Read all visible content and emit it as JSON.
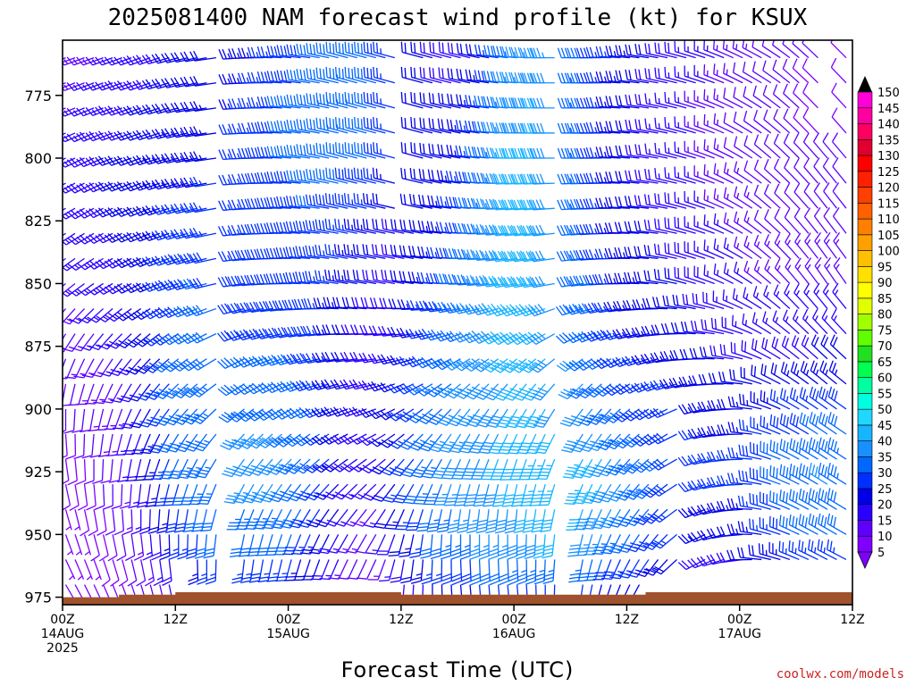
{
  "chart_data": {
    "type": "wind-barb-profile",
    "title": "2025081400 NAM forecast wind profile (kt) for KSUX",
    "xlabel": "Forecast Time (UTC)",
    "ylabel": "",
    "x_unit": "forecast hour",
    "x_range": [
      0,
      84
    ],
    "x_ticks": [
      {
        "hour": 0,
        "line1": "00Z",
        "line2": "14AUG",
        "line3": "2025"
      },
      {
        "hour": 12,
        "line1": "12Z",
        "line2": "",
        "line3": ""
      },
      {
        "hour": 24,
        "line1": "00Z",
        "line2": "15AUG",
        "line3": ""
      },
      {
        "hour": 36,
        "line1": "12Z",
        "line2": "",
        "line3": ""
      },
      {
        "hour": 48,
        "line1": "00Z",
        "line2": "16AUG",
        "line3": ""
      },
      {
        "hour": 60,
        "line1": "12Z",
        "line2": "",
        "line3": ""
      },
      {
        "hour": 72,
        "line1": "00Z",
        "line2": "17AUG",
        "line3": ""
      },
      {
        "hour": 84,
        "line1": "12Z",
        "line2": "",
        "line3": ""
      }
    ],
    "y_unit": "hPa",
    "y_range": [
      978,
      753
    ],
    "y_ticks": [
      775,
      800,
      825,
      850,
      875,
      900,
      925,
      950,
      975
    ],
    "colorbar": {
      "levels": [
        5,
        10,
        15,
        20,
        25,
        30,
        35,
        40,
        45,
        50,
        55,
        60,
        65,
        70,
        75,
        80,
        85,
        90,
        95,
        100,
        105,
        110,
        115,
        120,
        125,
        130,
        135,
        140,
        145,
        150
      ],
      "colors": [
        "#7f00ff",
        "#5f00ff",
        "#2a00ff",
        "#0000e8",
        "#0030ff",
        "#0068ff",
        "#1890ff",
        "#18b4ff",
        "#20d8ff",
        "#00ffe0",
        "#00ffa0",
        "#00ff50",
        "#20e020",
        "#60ff00",
        "#a0ff00",
        "#e0ff00",
        "#ffff00",
        "#ffe000",
        "#ffc000",
        "#ffa000",
        "#ff8000",
        "#ff6000",
        "#ff4000",
        "#ff2000",
        "#ff0000",
        "#e00030",
        "#ff0060",
        "#ff00a0",
        "#ff00d8",
        "#e000ff"
      ]
    },
    "surface_color": "#a0522d",
    "surface_pressure_hPa": [
      975,
      975,
      975,
      975,
      975,
      975,
      974,
      974,
      974,
      974,
      974,
      974,
      973,
      973,
      973,
      973,
      973,
      973,
      973,
      973,
      973,
      973,
      973,
      973,
      973,
      973,
      973,
      973,
      973,
      973,
      973,
      973,
      973,
      973,
      973,
      973,
      974,
      974,
      974,
      974,
      974,
      974,
      974,
      974,
      974,
      974,
      974,
      974,
      974,
      974,
      974,
      974,
      974,
      974,
      974,
      974,
      974,
      974,
      974,
      974,
      974,
      974,
      973,
      973,
      973,
      973,
      973,
      973,
      973,
      973,
      973,
      973,
      973,
      973,
      973,
      973,
      973,
      973,
      973,
      973,
      973,
      973,
      973,
      973,
      973
    ],
    "hours": [
      0,
      1,
      2,
      3,
      4,
      5,
      6,
      7,
      8,
      9,
      10,
      11,
      12,
      13,
      14,
      15,
      16,
      17,
      18,
      19,
      20,
      21,
      22,
      23,
      24,
      25,
      26,
      27,
      28,
      29,
      30,
      31,
      32,
      33,
      34,
      35,
      36,
      37,
      38,
      39,
      40,
      41,
      42,
      43,
      44,
      45,
      46,
      47,
      48,
      49,
      50,
      51,
      52,
      53,
      54,
      55,
      56,
      57,
      58,
      59,
      60,
      61,
      62,
      63,
      64,
      65,
      66,
      67,
      68,
      69,
      70,
      71,
      72,
      73,
      74,
      75,
      76,
      77,
      78,
      79,
      80,
      81,
      82,
      83,
      84
    ],
    "levels_hPa": [
      760,
      770,
      780,
      790,
      800,
      810,
      820,
      830,
      840,
      850,
      860,
      870,
      880,
      890,
      900,
      910,
      920,
      930,
      940,
      950,
      960,
      970
    ],
    "wind_key_times": [
      0,
      3,
      6,
      9,
      12,
      15,
      18,
      21,
      24,
      27,
      30,
      33,
      36,
      39,
      42,
      45,
      48,
      51,
      54,
      57,
      60,
      63,
      66,
      69,
      72,
      75,
      78,
      81,
      84
    ],
    "speed_kt_by_level": {
      "760": [
        12,
        14,
        16,
        18,
        20,
        20,
        22,
        24,
        28,
        30,
        32,
        30,
        26,
        20,
        18,
        22,
        34,
        38,
        34,
        28,
        24,
        20,
        18,
        16,
        14,
        12,
        10,
        10,
        8
      ],
      "780": [
        14,
        16,
        18,
        20,
        22,
        22,
        24,
        26,
        30,
        32,
        34,
        30,
        26,
        20,
        20,
        26,
        38,
        40,
        36,
        28,
        22,
        18,
        16,
        14,
        12,
        10,
        10,
        8,
        8
      ],
      "800": [
        16,
        18,
        20,
        22,
        24,
        24,
        26,
        28,
        30,
        32,
        32,
        30,
        24,
        20,
        22,
        30,
        40,
        40,
        36,
        28,
        22,
        18,
        16,
        14,
        12,
        12,
        10,
        10,
        10
      ],
      "825": [
        16,
        18,
        20,
        22,
        26,
        26,
        26,
        28,
        28,
        30,
        28,
        24,
        20,
        20,
        26,
        34,
        42,
        40,
        36,
        28,
        22,
        20,
        18,
        16,
        14,
        12,
        12,
        12,
        12
      ],
      "850": [
        14,
        16,
        18,
        22,
        28,
        30,
        28,
        28,
        28,
        28,
        24,
        20,
        18,
        24,
        30,
        36,
        42,
        40,
        36,
        30,
        24,
        22,
        20,
        18,
        16,
        14,
        14,
        14,
        14
      ],
      "875": [
        12,
        14,
        16,
        22,
        30,
        32,
        30,
        30,
        30,
        28,
        22,
        18,
        20,
        28,
        34,
        38,
        42,
        40,
        36,
        32,
        26,
        24,
        22,
        20,
        18,
        18,
        18,
        18,
        18
      ],
      "900": [
        10,
        12,
        14,
        22,
        32,
        34,
        34,
        34,
        34,
        30,
        22,
        18,
        24,
        32,
        36,
        38,
        40,
        40,
        38,
        34,
        30,
        28,
        26,
        24,
        22,
        24,
        26,
        28,
        30
      ],
      "925": [
        8,
        10,
        12,
        20,
        30,
        34,
        36,
        38,
        36,
        30,
        20,
        16,
        26,
        34,
        38,
        40,
        42,
        44,
        46,
        42,
        36,
        32,
        28,
        26,
        26,
        30,
        34,
        36,
        34
      ],
      "950": [
        6,
        8,
        10,
        16,
        26,
        30,
        30,
        32,
        30,
        24,
        16,
        12,
        22,
        30,
        34,
        36,
        38,
        40,
        40,
        36,
        32,
        28,
        24,
        22,
        22,
        26,
        30,
        32,
        30
      ],
      "970": [
        4,
        6,
        8,
        12,
        18,
        22,
        22,
        24,
        22,
        16,
        10,
        8,
        16,
        20,
        24,
        26,
        28,
        28,
        28,
        24,
        22,
        20,
        18,
        16,
        16,
        18,
        20,
        22,
        20
      ]
    },
    "direction_deg_by_level": {
      "760": [
        250,
        250,
        250,
        250,
        255,
        260,
        265,
        270,
        275,
        280,
        285,
        285,
        285,
        285,
        285,
        280,
        275,
        270,
        270,
        270,
        275,
        280,
        285,
        290,
        295,
        300,
        310,
        315,
        315
      ],
      "800": [
        245,
        245,
        250,
        250,
        255,
        260,
        265,
        270,
        275,
        280,
        285,
        285,
        285,
        285,
        280,
        275,
        270,
        270,
        270,
        270,
        275,
        280,
        285,
        290,
        300,
        310,
        315,
        320,
        320
      ],
      "850": [
        230,
        235,
        240,
        245,
        250,
        255,
        260,
        265,
        270,
        275,
        280,
        280,
        280,
        275,
        270,
        265,
        260,
        260,
        260,
        265,
        270,
        275,
        285,
        290,
        300,
        310,
        320,
        325,
        325
      ],
      "900": [
        180,
        190,
        200,
        210,
        220,
        225,
        230,
        235,
        240,
        245,
        250,
        250,
        240,
        230,
        220,
        215,
        210,
        210,
        215,
        220,
        230,
        240,
        250,
        260,
        270,
        290,
        300,
        305,
        305
      ],
      "950": [
        160,
        165,
        170,
        175,
        180,
        185,
        190,
        195,
        200,
        205,
        210,
        210,
        195,
        185,
        180,
        180,
        180,
        185,
        190,
        200,
        210,
        220,
        235,
        250,
        265,
        285,
        295,
        300,
        300
      ],
      "970": [
        150,
        155,
        160,
        165,
        170,
        175,
        180,
        185,
        190,
        195,
        200,
        200,
        185,
        180,
        175,
        175,
        175,
        180,
        185,
        195,
        205,
        215,
        230,
        245,
        260,
        280,
        290,
        295,
        295
      ]
    },
    "missing_blocks": [
      {
        "hours": [
          12,
          13
        ],
        "hPa_top": 960,
        "hPa_bottom": 978
      },
      {
        "hours": [
          17,
          18
        ],
        "hPa_top": 753,
        "hPa_bottom": 980
      },
      {
        "hours": [
          36,
          37
        ],
        "hPa_top": 753,
        "hPa_bottom": 828
      },
      {
        "hours": [
          53,
          54
        ],
        "hPa_top": 753,
        "hPa_bottom": 980
      },
      {
        "hours": [
          81,
          82
        ],
        "hPa_top": 753,
        "hPa_bottom": 790
      },
      {
        "hours": [
          66,
          67
        ],
        "hPa_top": 900,
        "hPa_bottom": 980
      }
    ]
  },
  "credit": "coolwx.com/models"
}
